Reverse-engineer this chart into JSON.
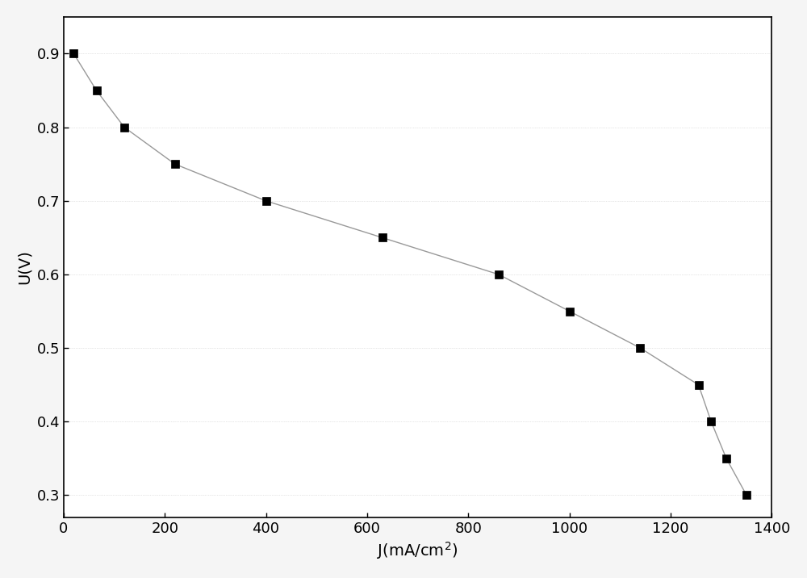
{
  "x": [
    20,
    65,
    120,
    220,
    400,
    630,
    860,
    1000,
    1140,
    1255,
    1280,
    1310,
    1350
  ],
  "y": [
    0.9,
    0.85,
    0.8,
    0.75,
    0.7,
    0.65,
    0.6,
    0.55,
    0.5,
    0.45,
    0.4,
    0.35,
    0.3
  ],
  "line_color": "#999999",
  "marker_color": "#000000",
  "marker_style": "s",
  "marker_size": 7,
  "line_width": 1.0,
  "xlabel": "J(mA/cm$^2$)",
  "ylabel": "U(V)",
  "xlim": [
    0,
    1400
  ],
  "ylim": [
    0.27,
    0.95
  ],
  "xticks": [
    0,
    200,
    400,
    600,
    800,
    1000,
    1200,
    1400
  ],
  "yticks": [
    0.3,
    0.4,
    0.5,
    0.6,
    0.7,
    0.8,
    0.9
  ],
  "background_color": "#ffffff",
  "fig_background_color": "#f5f5f5",
  "axes_color": "#000000",
  "tick_label_fontsize": 13,
  "axis_label_fontsize": 14,
  "grid_color": "#cccccc",
  "grid_linewidth": 0.5,
  "grid_linestyle": ":"
}
